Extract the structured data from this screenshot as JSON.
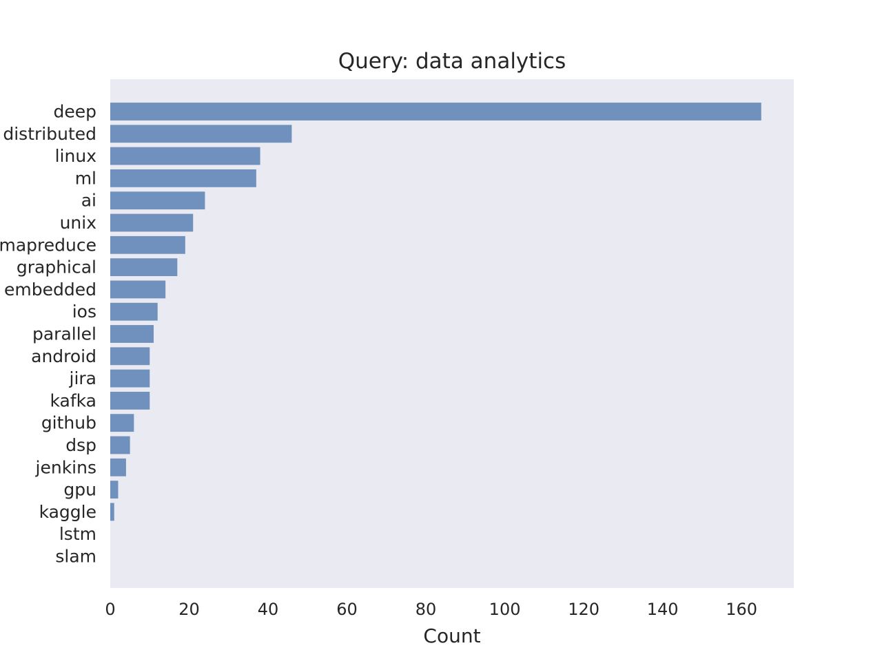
{
  "chart_data": {
    "type": "bar",
    "orientation": "horizontal",
    "title": "Query: data analytics",
    "xlabel": "Count",
    "ylabel": "",
    "categories": [
      "deep",
      "distributed",
      "linux",
      "ml",
      "ai",
      "unix",
      "mapreduce",
      "graphical",
      "embedded",
      "ios",
      "parallel",
      "android",
      "jira",
      "kafka",
      "github",
      "dsp",
      "jenkins",
      "gpu",
      "kaggle",
      "lstm",
      "slam"
    ],
    "values": [
      165,
      46,
      38,
      37,
      24,
      21,
      19,
      17,
      14,
      12,
      11,
      10,
      10,
      10,
      6,
      5,
      4,
      2,
      1,
      0,
      0
    ],
    "xlim": [
      0,
      173.25
    ],
    "xticks": [
      0,
      20,
      40,
      60,
      80,
      100,
      120,
      140,
      160
    ],
    "grid": false,
    "legend": "none",
    "colors": {
      "bar": "#7090be",
      "plot_background": "#eaeaf2",
      "text": "#262626"
    }
  }
}
